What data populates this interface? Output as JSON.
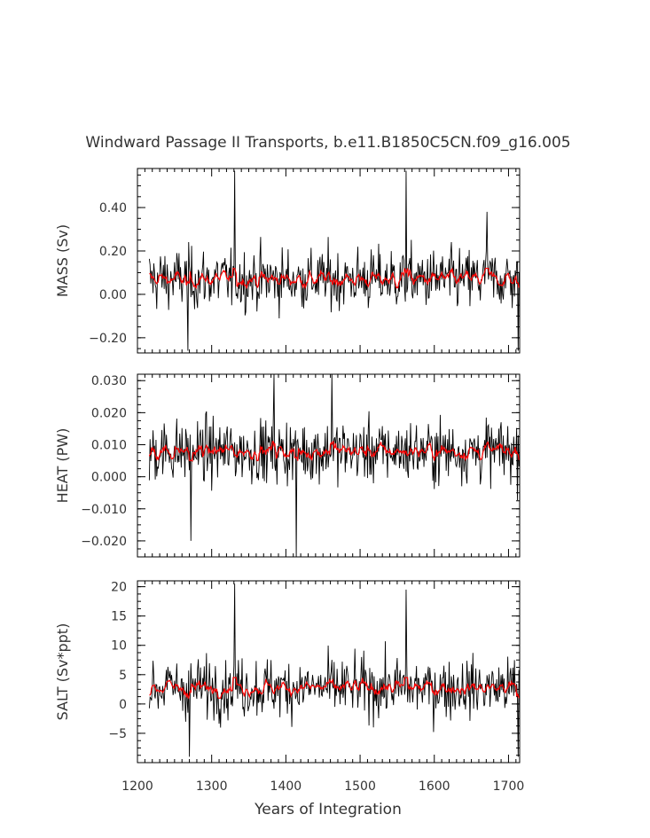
{
  "chart_title": "Windward Passage II Transports, b.e11.B1850C5CN.f09_g16.005",
  "xlabel": "Years of Integration",
  "x_ticks": [
    "1200",
    "1300",
    "1400",
    "1500",
    "1600",
    "1700"
  ],
  "panels": [
    {
      "ylabel": "MASS (Sv)",
      "y_ticks": [
        "0.40",
        "0.20",
        "0.00",
        "−0.20"
      ],
      "chart_data": {
        "type": "line",
        "xlim": [
          1200,
          1715
        ],
        "ylim": [
          -0.27,
          0.58
        ],
        "x_range": [
          1216,
          1714
        ],
        "series": [
          {
            "role": "annual",
            "color": "#000000",
            "approx_mean": 0.07,
            "approx_range": [
              -0.26,
              0.57
            ],
            "peaks": [
              {
                "x": 1331,
                "y": 0.57
              },
              {
                "x": 1562,
                "y": 0.57
              },
              {
                "x": 1671,
                "y": 0.38
              },
              {
                "x": 1268,
                "y": -0.26
              },
              {
                "x": 1713,
                "y": -0.26
              }
            ]
          },
          {
            "role": "smoothed",
            "color": "#ff0000",
            "approx_mean": 0.07,
            "approx_range": [
              0.03,
              0.12
            ]
          }
        ]
      }
    },
    {
      "ylabel": "HEAT (PW)",
      "y_ticks": [
        "0.030",
        "0.020",
        "0.010",
        "0.000",
        "−0.010",
        "−0.020"
      ],
      "chart_data": {
        "type": "line",
        "xlim": [
          1200,
          1715
        ],
        "ylim": [
          -0.025,
          0.032
        ],
        "x_range": [
          1216,
          1714
        ],
        "series": [
          {
            "role": "annual",
            "color": "#000000",
            "approx_mean": 0.008,
            "approx_range": [
              -0.025,
              0.032
            ],
            "peaks": [
              {
                "x": 1384,
                "y": 0.032
              },
              {
                "x": 1462,
                "y": 0.032
              },
              {
                "x": 1414,
                "y": -0.025
              },
              {
                "x": 1272,
                "y": -0.02
              }
            ]
          },
          {
            "role": "smoothed",
            "color": "#ff0000",
            "approx_mean": 0.008,
            "approx_range": [
              0.005,
              0.011
            ]
          }
        ]
      }
    },
    {
      "ylabel": "SALT (Sv*ppt)",
      "y_ticks": [
        "20",
        "15",
        "10",
        "5",
        "0",
        "−5"
      ],
      "chart_data": {
        "type": "line",
        "xlim": [
          1200,
          1715
        ],
        "ylim": [
          -10,
          21
        ],
        "x_range": [
          1216,
          1714
        ],
        "series": [
          {
            "role": "annual",
            "color": "#000000",
            "approx_mean": 2.8,
            "approx_range": [
              -9,
              20.5
            ],
            "peaks": [
              {
                "x": 1331,
                "y": 20.5
              },
              {
                "x": 1562,
                "y": 19.5
              },
              {
                "x": 1270,
                "y": -9
              },
              {
                "x": 1713,
                "y": -9
              }
            ]
          },
          {
            "role": "smoothed",
            "color": "#ff0000",
            "approx_mean": 2.8,
            "approx_range": [
              1.0,
              4.5
            ]
          }
        ]
      }
    }
  ]
}
